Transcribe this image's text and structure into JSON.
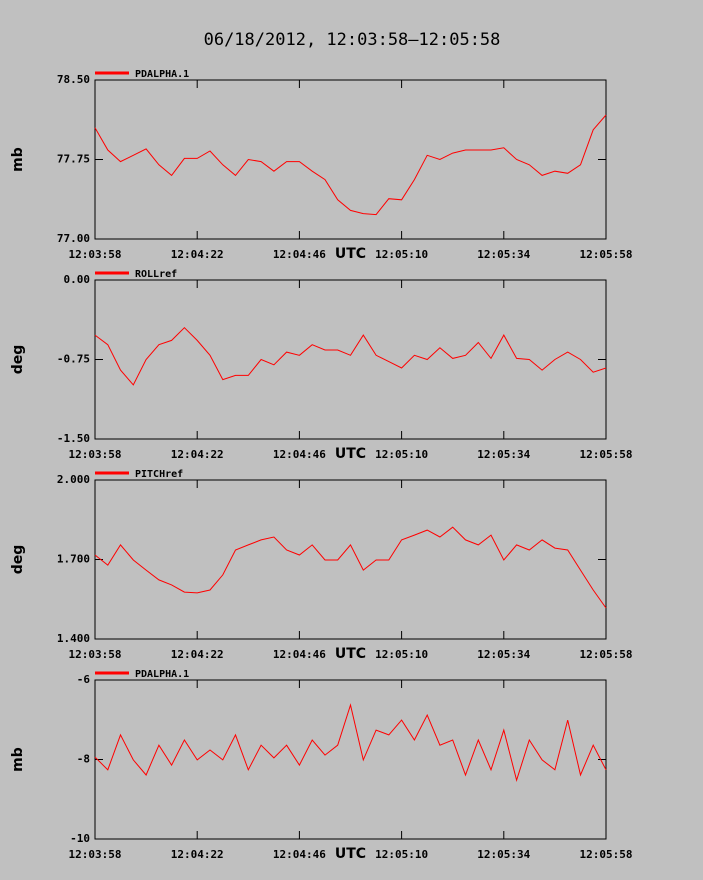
{
  "chart_data": [
    {
      "type": "line",
      "title": "06/18/2012, 12:03:58–12:05:58",
      "xlabel": "UTC",
      "ylabel": "mb",
      "x": [
        "12:03:58",
        "12:04:01",
        "12:04:04",
        "12:04:07",
        "12:04:10",
        "12:04:13",
        "12:04:16",
        "12:04:19",
        "12:04:22",
        "12:04:25",
        "12:04:28",
        "12:04:31",
        "12:04:34",
        "12:04:37",
        "12:04:40",
        "12:04:43",
        "12:04:46",
        "12:04:49",
        "12:04:52",
        "12:04:55",
        "12:04:58",
        "12:05:01",
        "12:05:04",
        "12:05:07",
        "12:05:10",
        "12:05:13",
        "12:05:16",
        "12:05:19",
        "12:05:22",
        "12:05:25",
        "12:05:28",
        "12:05:31",
        "12:05:34",
        "12:05:37",
        "12:05:40",
        "12:05:43",
        "12:05:46",
        "12:05:49",
        "12:05:52",
        "12:05:55",
        "12:05:58"
      ],
      "xlim": [
        "12:03:58",
        "12:05:58"
      ],
      "xticks": [
        "12:03:58",
        "12:04:22",
        "12:04:46",
        "12:05:10",
        "12:05:34",
        "12:05:58"
      ],
      "ylim": [
        77.0,
        78.5
      ],
      "yticks": [
        {
          "value": 78.5,
          "label": "78.50"
        },
        {
          "value": 77.75,
          "label": "77.75"
        },
        {
          "value": 77.0,
          "label": "77.00"
        }
      ],
      "series": [
        {
          "name": "PDALPHA.1",
          "color": "#ff0000",
          "values": [
            78.05,
            77.84,
            77.73,
            77.79,
            77.85,
            77.7,
            77.6,
            77.76,
            77.76,
            77.83,
            77.7,
            77.6,
            77.75,
            77.73,
            77.64,
            77.73,
            77.73,
            77.64,
            77.56,
            77.37,
            77.27,
            77.24,
            77.23,
            77.38,
            77.37,
            77.56,
            77.79,
            77.75,
            77.81,
            77.84,
            77.84,
            77.84,
            77.86,
            77.75,
            77.7,
            77.6,
            77.64,
            77.62,
            77.7,
            78.03,
            78.17
          ]
        }
      ]
    },
    {
      "type": "line",
      "xlabel": "UTC",
      "ylabel": "deg",
      "x": [
        "12:03:58",
        "12:04:01",
        "12:04:04",
        "12:04:07",
        "12:04:10",
        "12:04:13",
        "12:04:16",
        "12:04:19",
        "12:04:22",
        "12:04:25",
        "12:04:28",
        "12:04:31",
        "12:04:34",
        "12:04:37",
        "12:04:40",
        "12:04:43",
        "12:04:46",
        "12:04:49",
        "12:04:52",
        "12:04:55",
        "12:04:58",
        "12:05:01",
        "12:05:04",
        "12:05:07",
        "12:05:10",
        "12:05:13",
        "12:05:16",
        "12:05:19",
        "12:05:22",
        "12:05:25",
        "12:05:28",
        "12:05:31",
        "12:05:34",
        "12:05:37",
        "12:05:40",
        "12:05:43",
        "12:05:46",
        "12:05:49",
        "12:05:52",
        "12:05:55",
        "12:05:58"
      ],
      "xlim": [
        "12:03:58",
        "12:05:58"
      ],
      "xticks": [
        "12:03:58",
        "12:04:22",
        "12:04:46",
        "12:05:10",
        "12:05:34",
        "12:05:58"
      ],
      "ylim": [
        -1.5,
        0
      ],
      "yticks": [
        {
          "value": 0,
          "label": "0.00"
        },
        {
          "value": -0.75,
          "label": "-0.75"
        },
        {
          "value": -1.5,
          "label": "-1.50"
        }
      ],
      "series": [
        {
          "name": "ROLLref",
          "color": "#ff0000",
          "values": [
            -0.52,
            -0.61,
            -0.85,
            -0.99,
            -0.75,
            -0.61,
            -0.57,
            -0.45,
            -0.57,
            -0.71,
            -0.94,
            -0.9,
            -0.9,
            -0.75,
            -0.8,
            -0.68,
            -0.71,
            -0.61,
            -0.66,
            -0.66,
            -0.71,
            -0.52,
            -0.71,
            -0.77,
            -0.83,
            -0.71,
            -0.75,
            -0.64,
            -0.74,
            -0.71,
            -0.59,
            -0.74,
            -0.52,
            -0.74,
            -0.75,
            -0.85,
            -0.75,
            -0.68,
            -0.75,
            -0.87,
            -0.83
          ]
        }
      ]
    },
    {
      "type": "line",
      "xlabel": "UTC",
      "ylabel": "deg",
      "x": [
        "12:03:58",
        "12:04:01",
        "12:04:04",
        "12:04:07",
        "12:04:10",
        "12:04:13",
        "12:04:16",
        "12:04:19",
        "12:04:22",
        "12:04:25",
        "12:04:28",
        "12:04:31",
        "12:04:34",
        "12:04:37",
        "12:04:40",
        "12:04:43",
        "12:04:46",
        "12:04:49",
        "12:04:52",
        "12:04:55",
        "12:04:58",
        "12:05:01",
        "12:05:04",
        "12:05:07",
        "12:05:10",
        "12:05:13",
        "12:05:16",
        "12:05:19",
        "12:05:22",
        "12:05:25",
        "12:05:28",
        "12:05:31",
        "12:05:34",
        "12:05:37",
        "12:05:40",
        "12:05:43",
        "12:05:46",
        "12:05:49",
        "12:05:52",
        "12:05:55",
        "12:05:58"
      ],
      "xlim": [
        "12:03:58",
        "12:05:58"
      ],
      "xticks": [
        "12:03:58",
        "12:04:22",
        "12:04:46",
        "12:05:10",
        "12:05:34",
        "12:05:58"
      ],
      "ylim": [
        1.4,
        2.0
      ],
      "yticks": [
        {
          "value": 2.0,
          "label": "2.000"
        },
        {
          "value": 1.7,
          "label": "1.700"
        },
        {
          "value": 1.4,
          "label": "1.400"
        }
      ],
      "series": [
        {
          "name": "PITCHref",
          "color": "#ff0000",
          "values": [
            1.717,
            1.679,
            1.755,
            1.698,
            1.66,
            1.623,
            1.604,
            1.577,
            1.574,
            1.585,
            1.642,
            1.736,
            1.755,
            1.774,
            1.785,
            1.736,
            1.717,
            1.755,
            1.698,
            1.698,
            1.755,
            1.66,
            1.698,
            1.698,
            1.774,
            1.792,
            1.811,
            1.785,
            1.822,
            1.774,
            1.755,
            1.792,
            1.698,
            1.755,
            1.736,
            1.774,
            1.743,
            1.736,
            1.66,
            1.585,
            1.517
          ]
        }
      ]
    },
    {
      "type": "line",
      "xlabel": "UTC",
      "ylabel": "mb",
      "x": [
        "12:03:58",
        "12:04:01",
        "12:04:04",
        "12:04:07",
        "12:04:10",
        "12:04:13",
        "12:04:16",
        "12:04:19",
        "12:04:22",
        "12:04:25",
        "12:04:28",
        "12:04:31",
        "12:04:34",
        "12:04:37",
        "12:04:40",
        "12:04:43",
        "12:04:46",
        "12:04:49",
        "12:04:52",
        "12:04:55",
        "12:04:58",
        "12:05:01",
        "12:05:04",
        "12:05:07",
        "12:05:10",
        "12:05:13",
        "12:05:16",
        "12:05:19",
        "12:05:22",
        "12:05:25",
        "12:05:28",
        "12:05:31",
        "12:05:34",
        "12:05:37",
        "12:05:40",
        "12:05:43",
        "12:05:46",
        "12:05:49",
        "12:05:52",
        "12:05:55",
        "12:05:58"
      ],
      "xlim": [
        "12:03:58",
        "12:05:58"
      ],
      "xticks": [
        "12:03:58",
        "12:04:22",
        "12:04:46",
        "12:05:10",
        "12:05:34",
        "12:05:58"
      ],
      "ylim": [
        -10,
        -6
      ],
      "yticks": [
        -6,
        -8,
        -10
      ],
      "series": [
        {
          "name": "PDALPHA.1",
          "color": "#ff0000",
          "values": [
            -7.94,
            -8.26,
            -7.38,
            -8.01,
            -8.39,
            -7.64,
            -8.14,
            -7.51,
            -8.01,
            -7.76,
            -8.01,
            -7.38,
            -8.26,
            -7.64,
            -7.96,
            -7.64,
            -8.14,
            -7.51,
            -7.89,
            -7.64,
            -6.63,
            -8.01,
            -7.26,
            -7.38,
            -7.01,
            -7.51,
            -6.88,
            -7.64,
            -7.51,
            -8.39,
            -7.51,
            -8.26,
            -7.26,
            -8.52,
            -7.51,
            -8.01,
            -8.26,
            -7.01,
            -8.39,
            -7.64,
            -8.26
          ]
        }
      ]
    }
  ]
}
